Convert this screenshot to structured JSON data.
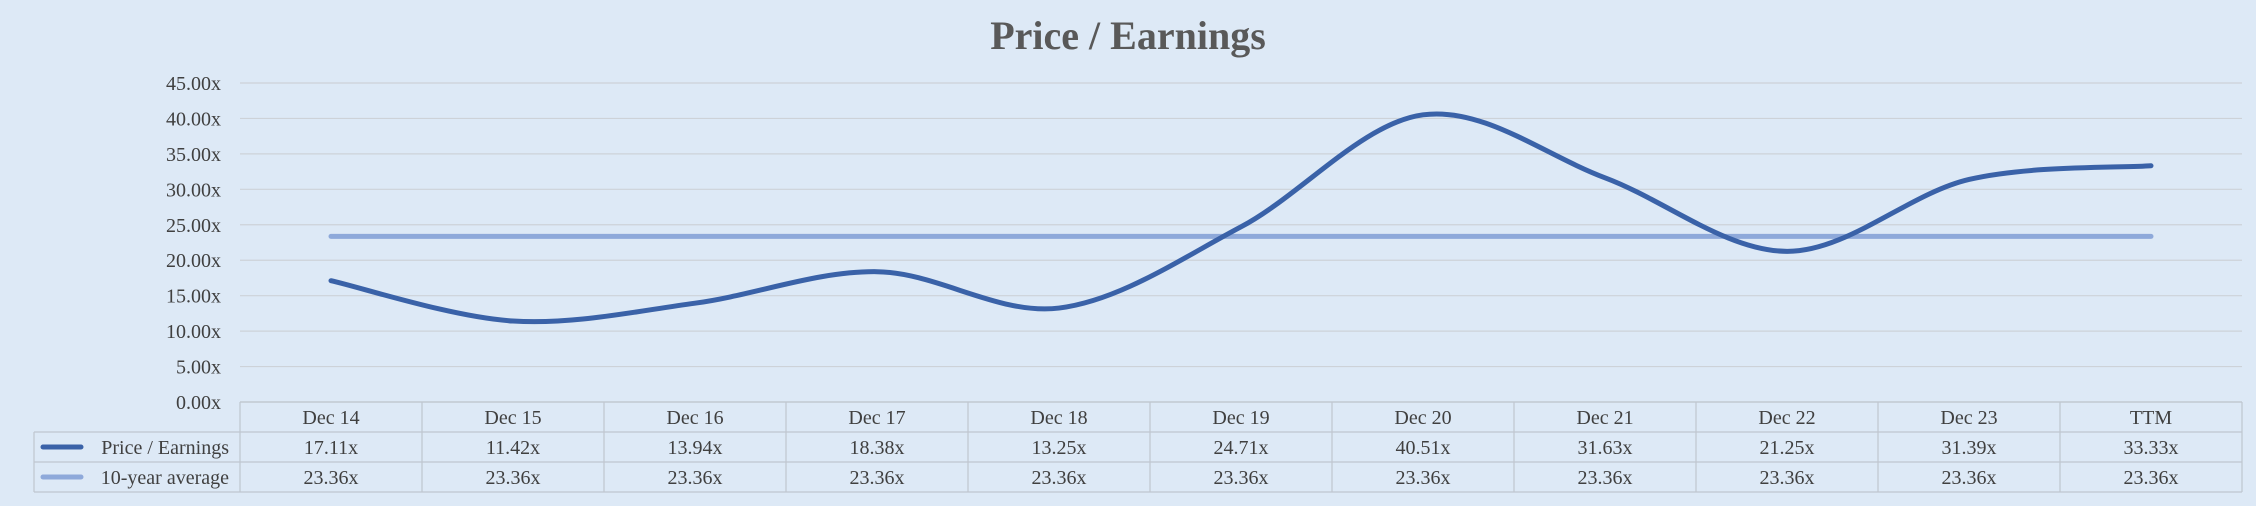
{
  "chart_data": {
    "type": "line",
    "title": "Price / Earnings",
    "categories": [
      "Dec 14",
      "Dec 15",
      "Dec 16",
      "Dec 17",
      "Dec 18",
      "Dec 19",
      "Dec 20",
      "Dec 21",
      "Dec 22",
      "Dec 23",
      "TTM"
    ],
    "series": [
      {
        "name": "Price / Earnings",
        "values": [
          17.11,
          11.42,
          13.94,
          18.38,
          13.25,
          24.71,
          40.51,
          31.63,
          21.25,
          31.39,
          33.33
        ],
        "labels": [
          "17.11x",
          "11.42x",
          "13.94x",
          "18.38x",
          "13.25x",
          "24.71x",
          "40.51x",
          "31.63x",
          "21.25x",
          "31.39x",
          "33.33x"
        ],
        "color": "#3a62a8"
      },
      {
        "name": "10-year average",
        "values": [
          23.36,
          23.36,
          23.36,
          23.36,
          23.36,
          23.36,
          23.36,
          23.36,
          23.36,
          23.36,
          23.36
        ],
        "labels": [
          "23.36x",
          "23.36x",
          "23.36x",
          "23.36x",
          "23.36x",
          "23.36x",
          "23.36x",
          "23.36x",
          "23.36x",
          "23.36x",
          "23.36x"
        ],
        "color": "#8ea9da"
      }
    ],
    "y_ticks": [
      "0.00x",
      "5.00x",
      "10.00x",
      "15.00x",
      "20.00x",
      "25.00x",
      "30.00x",
      "35.00x",
      "40.00x",
      "45.00x"
    ],
    "ylim": [
      0,
      45
    ],
    "ystep": 5,
    "grid": true,
    "legend": "data-table"
  },
  "colors": {
    "background": "#dde9f6",
    "gridline": "#cdd2d8",
    "table_border": "#bfc6cf"
  }
}
